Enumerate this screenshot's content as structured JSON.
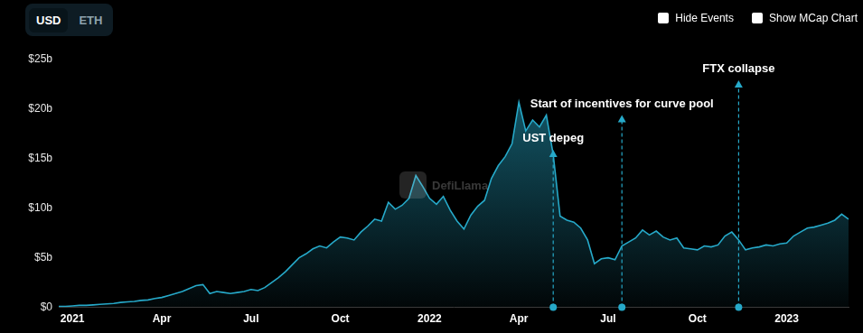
{
  "chart_data": {
    "type": "area",
    "categories": [
      null,
      null,
      "2021",
      null,
      null,
      null,
      null,
      null,
      null,
      null,
      null,
      null,
      null,
      null,
      null,
      "Apr",
      null,
      null,
      null,
      null,
      null,
      null,
      null,
      null,
      null,
      null,
      null,
      null,
      "Jul",
      null,
      null,
      null,
      null,
      null,
      null,
      null,
      null,
      null,
      null,
      null,
      null,
      "Oct",
      null,
      null,
      null,
      null,
      null,
      null,
      null,
      null,
      null,
      null,
      null,
      null,
      "2022",
      null,
      null,
      null,
      null,
      null,
      null,
      null,
      null,
      null,
      null,
      null,
      null,
      "Apr",
      null,
      null,
      null,
      null,
      null,
      null,
      null,
      null,
      null,
      null,
      null,
      null,
      "Jul",
      null,
      null,
      null,
      null,
      null,
      null,
      null,
      null,
      null,
      null,
      null,
      null,
      "Oct",
      null,
      null,
      null,
      null,
      null,
      null,
      null,
      null,
      null,
      null,
      null,
      null,
      "2023",
      null,
      null,
      null,
      null,
      null,
      null,
      null,
      null,
      null
    ],
    "values": [
      0.1,
      0.1,
      0.15,
      0.2,
      0.2,
      0.25,
      0.3,
      0.35,
      0.4,
      0.5,
      0.55,
      0.6,
      0.7,
      0.75,
      0.9,
      1.0,
      1.2,
      1.4,
      1.6,
      1.9,
      2.2,
      2.3,
      1.4,
      1.6,
      1.5,
      1.4,
      1.5,
      1.6,
      1.8,
      1.7,
      2.0,
      2.5,
      3.0,
      3.6,
      4.3,
      5.0,
      5.4,
      5.9,
      6.2,
      6.0,
      6.6,
      7.1,
      7.0,
      6.8,
      7.6,
      8.2,
      8.9,
      8.7,
      10.6,
      9.9,
      10.3,
      11.0,
      13.3,
      12.2,
      11.0,
      10.4,
      11.2,
      9.8,
      8.7,
      7.9,
      9.3,
      10.2,
      10.8,
      13.0,
      14.3,
      15.2,
      16.5,
      20.7,
      17.8,
      18.9,
      18.2,
      19.4,
      15.4,
      9.2,
      8.8,
      8.6,
      8.0,
      6.8,
      4.4,
      4.9,
      5.0,
      4.8,
      6.2,
      6.6,
      7.0,
      7.8,
      7.3,
      7.7,
      7.1,
      6.8,
      7.0,
      6.0,
      5.9,
      5.8,
      6.2,
      6.1,
      6.3,
      7.2,
      7.6,
      6.8,
      5.8,
      6.0,
      6.1,
      6.3,
      6.2,
      6.4,
      6.5,
      7.2,
      7.6,
      8.0,
      8.1,
      8.3,
      8.5,
      8.8,
      9.4,
      8.9
    ],
    "color": "#26a9c9",
    "ylim": [
      0,
      25
    ],
    "yticks": [
      {
        "value": 0,
        "label": "$0"
      },
      {
        "value": 5,
        "label": "$5b"
      },
      {
        "value": 10,
        "label": "$10b"
      },
      {
        "value": 15,
        "label": "$15b"
      },
      {
        "value": 20,
        "label": "$20b"
      },
      {
        "value": 25,
        "label": "$25b"
      }
    ],
    "grid": false,
    "annotations": [
      {
        "text": "UST depeg",
        "x": 72
      },
      {
        "text": "Start of incentives for curve pool",
        "x": 82
      },
      {
        "text": "FTX collapse",
        "x": 99
      }
    ]
  },
  "controls": {
    "currency_options": [
      "USD",
      "ETH"
    ],
    "selected": "USD",
    "checkboxes": [
      "Hide Events",
      "Show MCap Chart"
    ]
  },
  "watermark": "DefiLlama"
}
